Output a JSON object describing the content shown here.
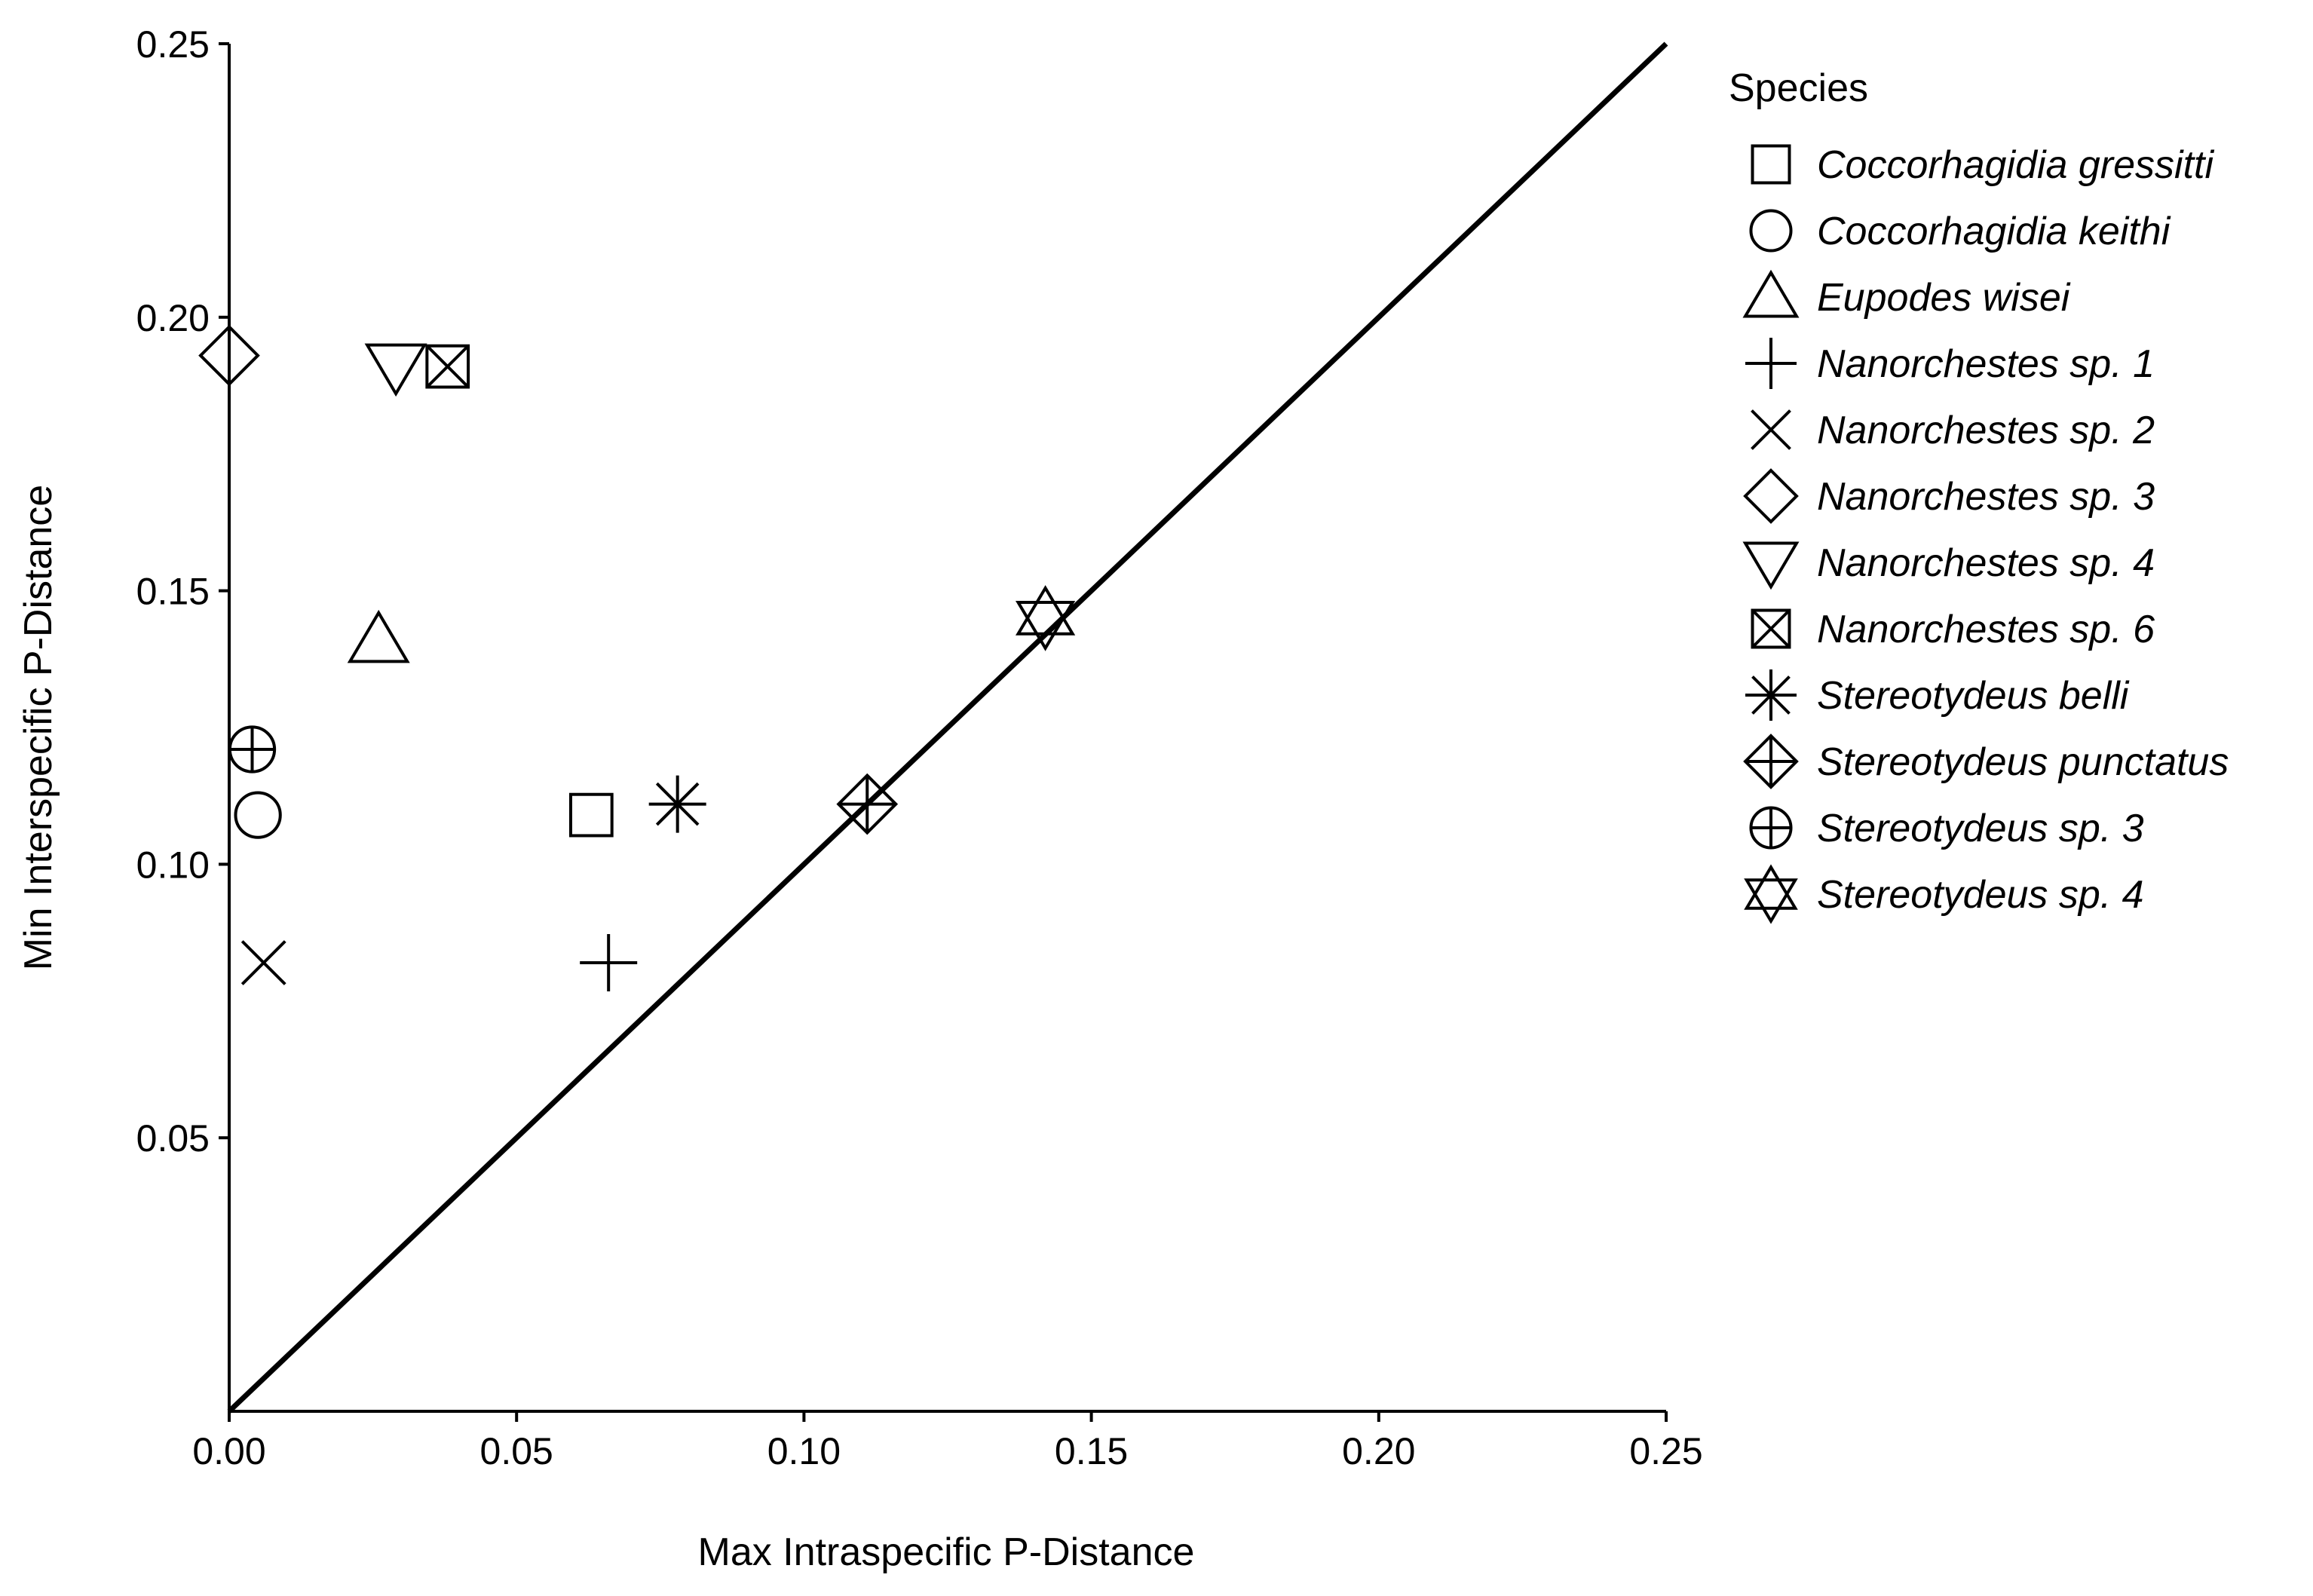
{
  "chart_data": {
    "type": "scatter",
    "xlabel": "Max Intraspecific P-Distance",
    "ylabel": "Min Interspecific P-Distance",
    "xlim": [
      0,
      0.25
    ],
    "ylim": [
      0,
      0.25
    ],
    "x_ticks": [
      "0.00",
      "0.05",
      "0.10",
      "0.15",
      "0.20",
      "0.25"
    ],
    "y_ticks": [
      "0.05",
      "0.10",
      "0.15",
      "0.20",
      "0.25"
    ],
    "reference_line": {
      "type": "identity",
      "from": [
        0,
        0
      ],
      "to": [
        0.25,
        0.25
      ]
    },
    "legend_title": "Species",
    "legend_placement": "right",
    "series": [
      {
        "name": "Coccorhagidia gressitti",
        "shape": "square",
        "x": 0.063,
        "y": 0.109
      },
      {
        "name": "Coccorhagidia keithi",
        "shape": "circle",
        "x": 0.005,
        "y": 0.109
      },
      {
        "name": "Eupodes wisei",
        "shape": "triangle-up",
        "x": 0.026,
        "y": 0.141
      },
      {
        "name": "Nanorchestes sp. 1",
        "shape": "plus",
        "x": 0.066,
        "y": 0.082
      },
      {
        "name": "Nanorchestes sp. 2",
        "shape": "cross",
        "x": 0.006,
        "y": 0.082
      },
      {
        "name": "Nanorchestes sp. 3",
        "shape": "diamond",
        "x": 0.0,
        "y": 0.193
      },
      {
        "name": "Nanorchestes sp. 4",
        "shape": "triangle-down",
        "x": 0.029,
        "y": 0.191
      },
      {
        "name": "Nanorchestes sp. 6",
        "shape": "square-cross",
        "x": 0.038,
        "y": 0.191
      },
      {
        "name": "Stereotydeus belli",
        "shape": "asterisk",
        "x": 0.078,
        "y": 0.111
      },
      {
        "name": "Stereotydeus punctatus",
        "shape": "diamond-plus",
        "x": 0.111,
        "y": 0.111
      },
      {
        "name": "Stereotydeus sp. 3",
        "shape": "circle-plus",
        "x": 0.004,
        "y": 0.121
      },
      {
        "name": "Stereotydeus sp. 4",
        "shape": "hexagram",
        "x": 0.142,
        "y": 0.145
      }
    ]
  }
}
